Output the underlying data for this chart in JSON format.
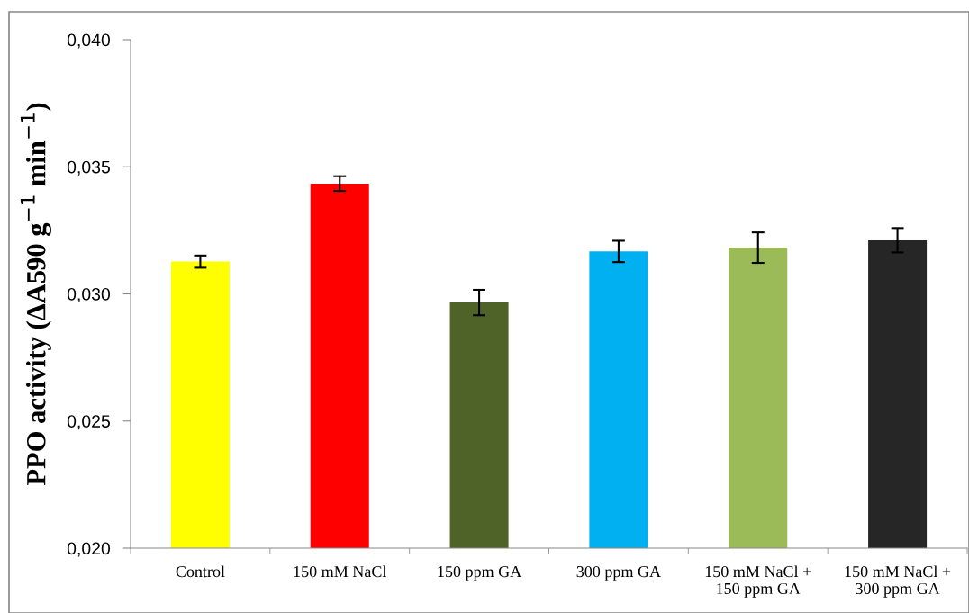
{
  "chart_data": {
    "type": "bar",
    "ylabel": "PPO activity (ΔA590 g$^{−1}$ min$^{−1}$)",
    "categories": [
      "Control",
      "150 mM NaCl",
      "150 ppm GA",
      "300 ppm GA",
      "150 mM NaCl +\n150 ppm GA",
      "150 mM NaCl +\n300 ppm GA"
    ],
    "values": [
      0.03127,
      0.03434,
      0.02966,
      0.03167,
      0.03182,
      0.03211
    ],
    "errors": [
      0.00024,
      0.00029,
      0.0005,
      0.00042,
      0.0006,
      0.00048
    ],
    "colors": [
      "#ffff00",
      "#ff0000",
      "#4f6228",
      "#00b0f0",
      "#9bbb59",
      "#262626"
    ],
    "ylim": [
      0.02,
      0.04
    ],
    "yticks": [
      {
        "value": 0.02,
        "label": "0,020"
      },
      {
        "value": 0.025,
        "label": "0,025"
      },
      {
        "value": 0.03,
        "label": "0,030"
      },
      {
        "value": 0.035,
        "label": "0,035"
      },
      {
        "value": 0.04,
        "label": "0,040"
      }
    ],
    "grid": false,
    "legend": false
  }
}
